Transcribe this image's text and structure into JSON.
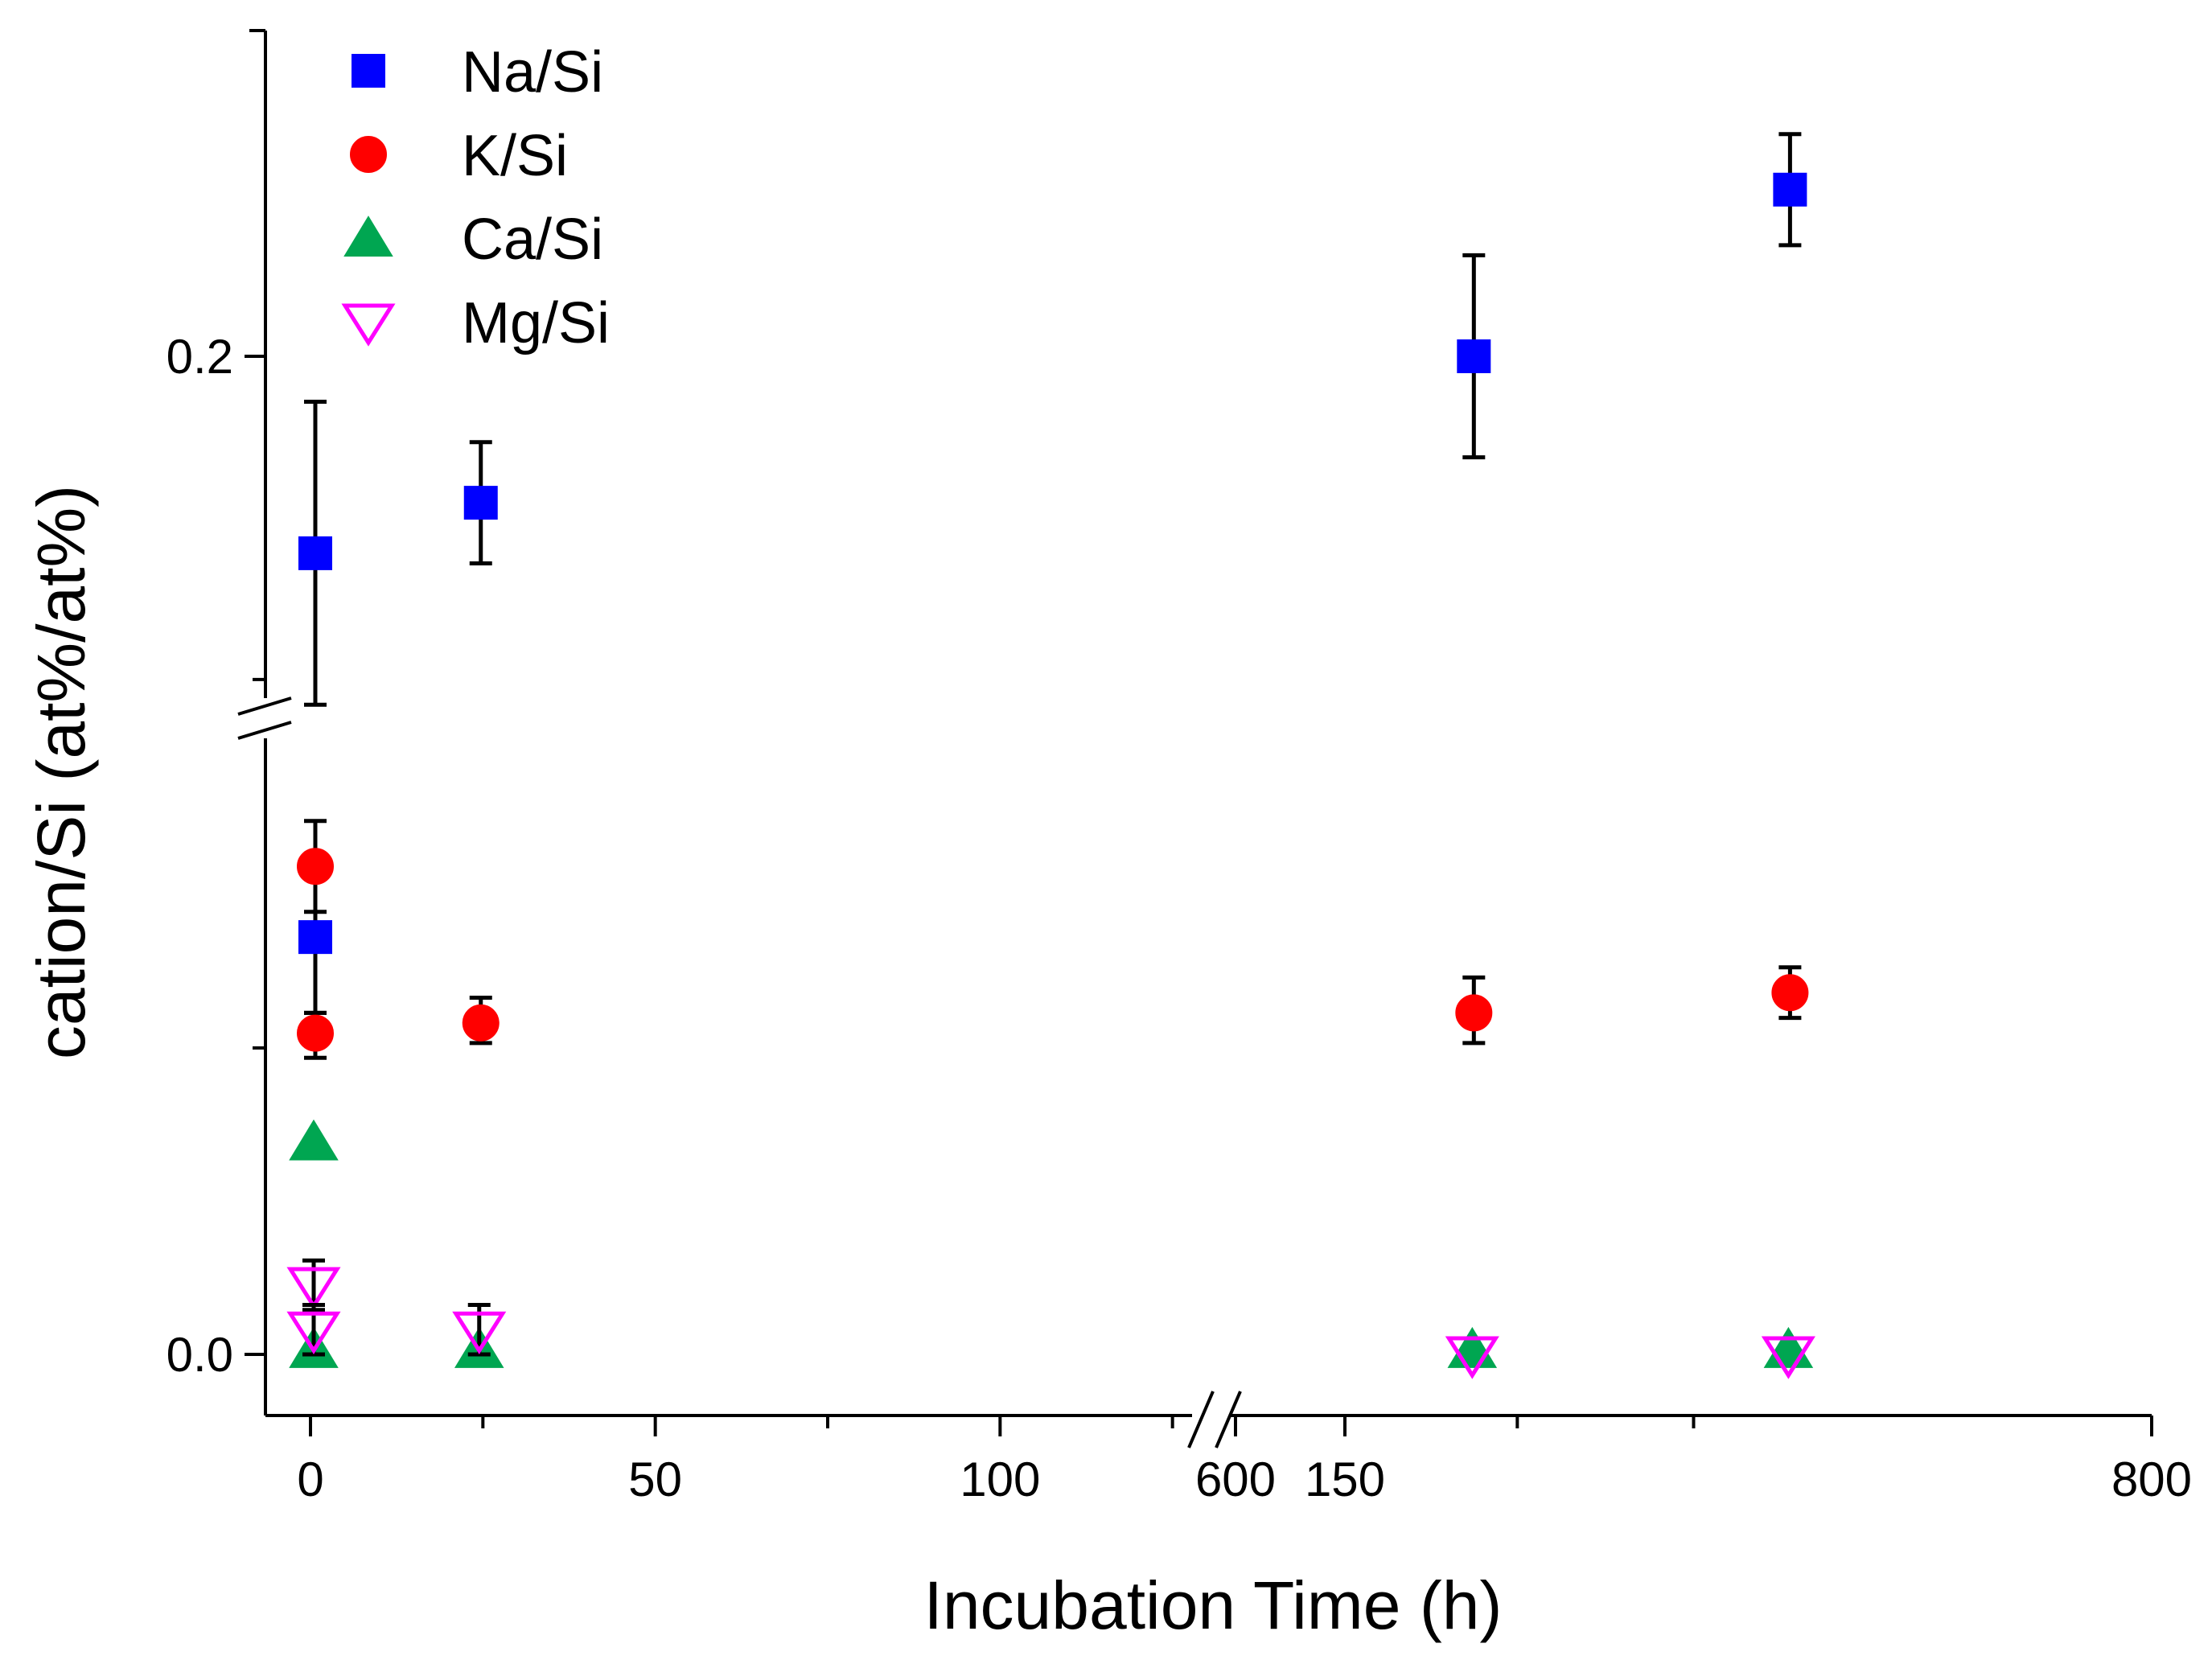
{
  "chart_data": {
    "type": "scatter",
    "title": "",
    "xlabel": "Incubation Time (h)",
    "ylabel": "cation/Si (at%/at%)",
    "x_axis": {
      "segments": [
        {
          "range": [
            -10,
            190
          ],
          "ticks": [
            0,
            50,
            100,
            150
          ],
          "minor_ticks": [
            25,
            75,
            125,
            175
          ]
        },
        {
          "range": [
            600,
            800
          ],
          "ticks": [
            600,
            800
          ],
          "minor_ticks": [
            700
          ]
        }
      ],
      "break_between": [
        190,
        600
      ]
    },
    "y_axis": {
      "segments": [
        {
          "range": [
            -0.013,
            0.062
          ],
          "ticks": [
            0.0
          ],
          "minor_ticks": [
            0.062
          ]
        },
        {
          "range": [
            0.132,
            0.21
          ],
          "ticks": [
            0.2
          ],
          "minor_ticks": [
            0.136,
            0.2
          ]
        }
      ],
      "break_between": [
        0.066,
        0.131
      ],
      "tick_labels": [
        "0.0",
        "0.2"
      ]
    },
    "x_tick_labels": [
      "0",
      "50",
      "100",
      "150",
      "600",
      "800"
    ],
    "legend": {
      "position": "top-left"
    },
    "grid": false,
    "series": [
      {
        "name": "Na/Si",
        "marker": "square",
        "color": "#0000FF",
        "filled": true,
        "points": [
          {
            "x": 0,
            "y": 0.161,
            "err": 0.03
          },
          {
            "x": 24,
            "y": 0.171,
            "err": 0.012
          },
          {
            "x": 168,
            "y": 0.2,
            "err": 0.02
          },
          {
            "x": 720,
            "y": 0.233,
            "err": 0.011
          },
          {
            "x": 0,
            "y": 0.085,
            "err": 0.015
          }
        ]
      },
      {
        "name": "K/Si",
        "marker": "circle",
        "color": "#FF0000",
        "filled": true,
        "points": [
          {
            "x": 0,
            "y": 0.099,
            "err": 0.009
          },
          {
            "x": 0,
            "y": 0.065,
            "err": 0.005
          },
          {
            "x": 24,
            "y": 0.068,
            "err": 0.005
          },
          {
            "x": 168,
            "y": 0.07,
            "err": 0.007
          },
          {
            "x": 720,
            "y": 0.074,
            "err": 0.005
          }
        ]
      },
      {
        "name": "Ca/Si",
        "marker": "triangle-up",
        "color": "#00A651",
        "filled": true,
        "points": [
          {
            "x": 0,
            "y": 0.043,
            "err": 0
          },
          {
            "x": 0,
            "y": 0.001,
            "err": 0
          },
          {
            "x": 24,
            "y": 0.001,
            "err": 0
          },
          {
            "x": 168,
            "y": 0.001,
            "err": 0
          },
          {
            "x": 720,
            "y": 0.001,
            "err": 0
          }
        ]
      },
      {
        "name": "Mg/Si",
        "marker": "triangle-down",
        "color": "#FF00FF",
        "filled": false,
        "points": [
          {
            "x": 0,
            "y": 0.014,
            "err": 0.005
          },
          {
            "x": 0,
            "y": 0.005,
            "err": 0.005
          },
          {
            "x": 24,
            "y": 0.005,
            "err": 0.005
          },
          {
            "x": 168,
            "y": 0.0,
            "err": 0
          },
          {
            "x": 720,
            "y": 0.0,
            "err": 0
          }
        ]
      }
    ]
  }
}
